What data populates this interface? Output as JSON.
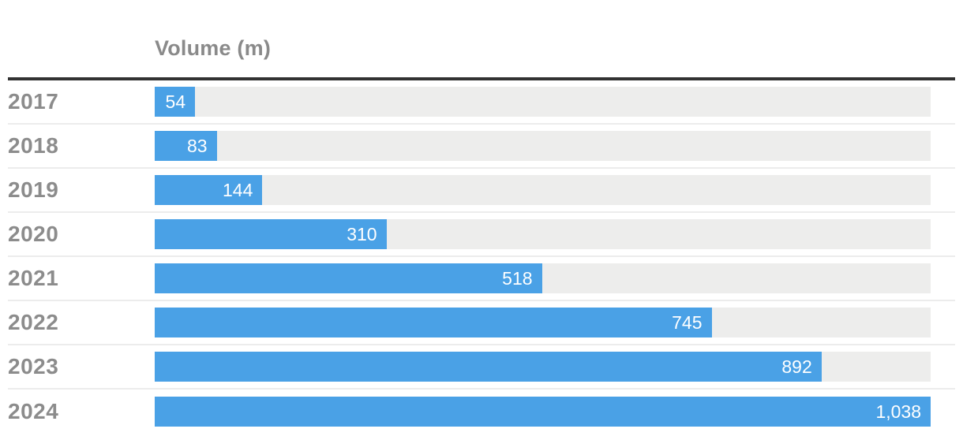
{
  "chart_data": {
    "type": "bar",
    "orientation": "horizontal",
    "title": "Volume (m)",
    "categories": [
      "2017",
      "2018",
      "2019",
      "2020",
      "2021",
      "2022",
      "2023",
      "2024"
    ],
    "values": [
      54,
      83,
      144,
      310,
      518,
      745,
      892,
      1038
    ],
    "value_labels": [
      "54",
      "83",
      "144",
      "310",
      "518",
      "745",
      "892",
      "1,038"
    ],
    "xlabel": "",
    "ylabel": "",
    "xlim": [
      0,
      1038
    ],
    "grid": "off",
    "legend": "none",
    "value_label_position": "inside-end",
    "colors": {
      "bar": "#4aa1e6",
      "track": "#ededec",
      "title_text": "#8a8a8a",
      "category_text": "#8c8c8c",
      "value_text": "#ffffff",
      "header_rule": "#323232",
      "row_separator": "#ececec",
      "background": "#ffffff"
    }
  }
}
